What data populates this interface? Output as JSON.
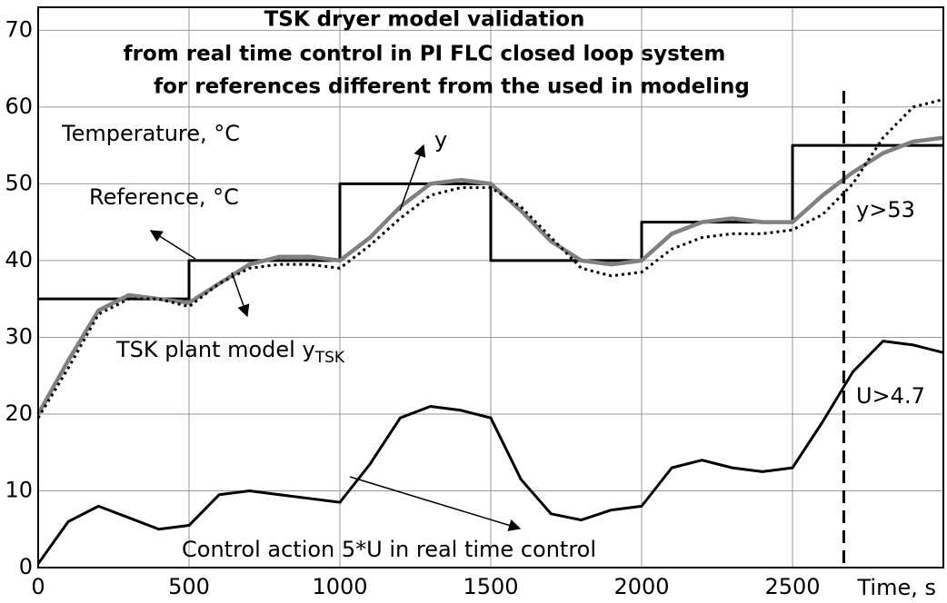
{
  "chart_data": {
    "type": "line",
    "title": [
      "TSK dryer model validation",
      "from real time control in PI FLC closed loop system",
      "for references different from the used in modeling"
    ],
    "x": [
      0,
      100,
      200,
      300,
      400,
      500,
      600,
      700,
      800,
      900,
      1000,
      1100,
      1200,
      1300,
      1400,
      1500,
      1600,
      1700,
      1800,
      1900,
      2000,
      2100,
      2200,
      2300,
      2400,
      2500,
      2600,
      2700,
      2800,
      2900,
      3000
    ],
    "series": [
      {
        "color": "#000000",
        "style": "solid",
        "x": [
          0,
          500,
          500,
          1000,
          1000,
          1500,
          1500,
          2000,
          2000,
          2500,
          2500,
          3000
        ],
        "values": [
          35,
          35,
          40,
          40,
          50,
          50,
          40,
          40,
          45,
          45,
          55,
          55
        ]
      },
      {
        "color": "#808080",
        "style": "thick",
        "values": [
          20,
          27,
          33.5,
          35.5,
          35,
          34.5,
          37,
          39.5,
          40.5,
          40.5,
          40,
          43,
          47,
          50,
          50.5,
          50,
          46.5,
          42.5,
          40,
          39.5,
          40,
          43.5,
          45,
          45.5,
          45,
          45,
          48.5,
          51.5,
          54,
          55.5,
          56
        ]
      },
      {
        "color": "#000000",
        "style": "dotted",
        "values": [
          19.5,
          26,
          33,
          35,
          35,
          34,
          37,
          39,
          39.5,
          39.5,
          39,
          42,
          45.5,
          48.5,
          49.5,
          49.5,
          47,
          43,
          39,
          38,
          38.5,
          41.5,
          43,
          43.5,
          43.5,
          44,
          46,
          50,
          56,
          60,
          61
        ]
      },
      {
        "color": "#000000",
        "style": "solid",
        "values": [
          0.5,
          6,
          8,
          6.5,
          5,
          5.5,
          9.5,
          10,
          9.5,
          9,
          8.5,
          13.5,
          19.5,
          21,
          20.5,
          19.5,
          11.5,
          7,
          6.2,
          7.5,
          8,
          13,
          14,
          13,
          12.5,
          13,
          19,
          25.5,
          29.5,
          29,
          28
        ]
      }
    ],
    "xlim": [
      0,
      3000
    ],
    "ylim": [
      0,
      73
    ],
    "xticks": [
      0,
      500,
      1000,
      1500,
      2000,
      2500
    ],
    "yticks": [
      0,
      10,
      20,
      30,
      40,
      50,
      60,
      70
    ],
    "grid": true,
    "vline": 2670,
    "annotations": [
      {
        "text": "Temperature, °C"
      },
      {
        "text": "Reference, °C"
      },
      {
        "text": "y"
      },
      {
        "text": "TSK plant model y",
        "sub": "TSK"
      },
      {
        "text": "y>53"
      },
      {
        "text": "U>4.7"
      },
      {
        "text": "Control action 5*U in real time control"
      },
      {
        "text": "Time, s"
      }
    ]
  }
}
